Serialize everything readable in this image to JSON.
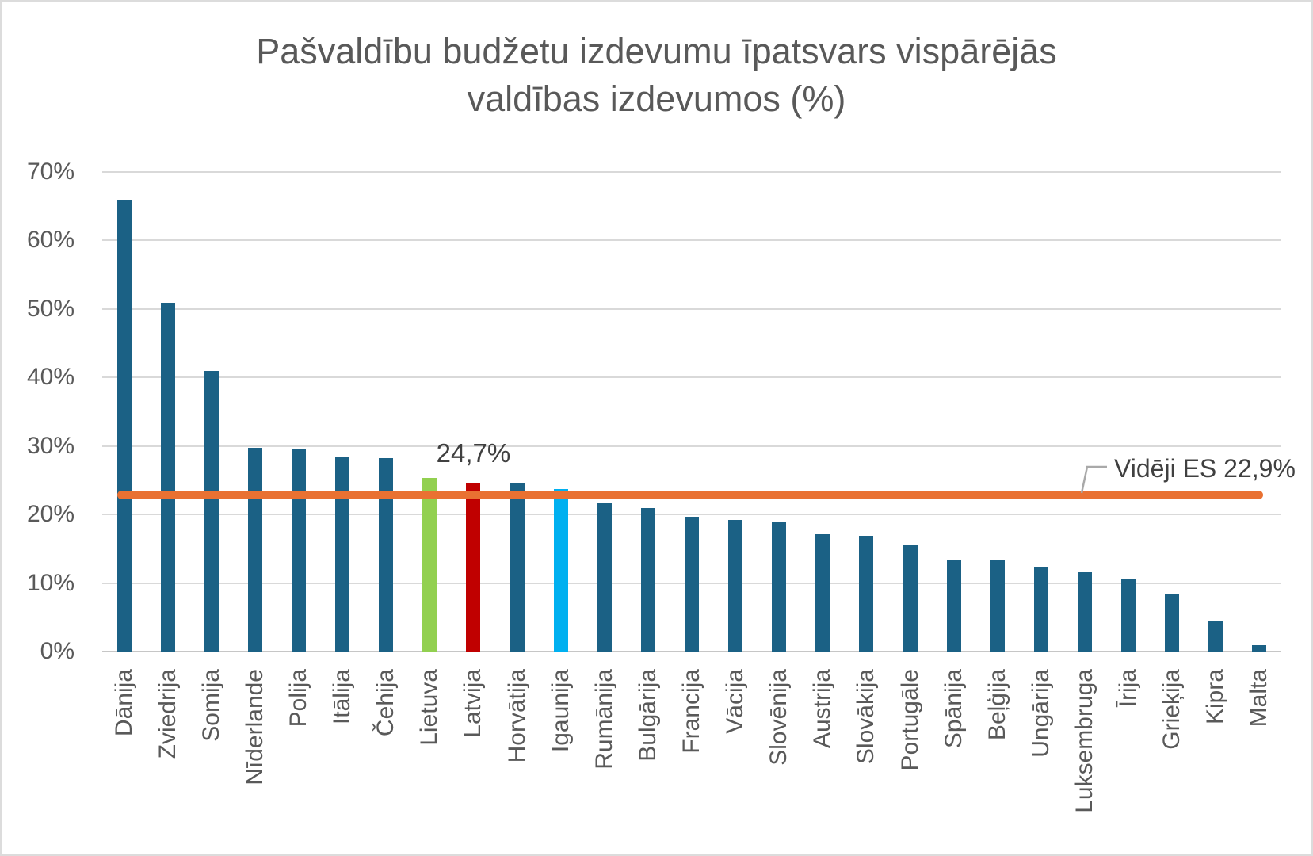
{
  "title": {
    "line1": "Pašvaldību budžetu izdevumu īpatsvars vispārējās",
    "line2": "valdības izdevumos (%)"
  },
  "chart_data": {
    "type": "bar",
    "title": "Pašvaldību budžetu izdevumu īpatsvars vispārējās valdības izdevumos (%)",
    "xlabel": "",
    "ylabel": "",
    "ylim": [
      0,
      70
    ],
    "grid": true,
    "legend": false,
    "categories": [
      "Dānija",
      "Zviedrija",
      "Somija",
      "Nīderlande",
      "Polija",
      "Itālija",
      "Čehija",
      "Lietuva",
      "Latvija",
      "Horvātija",
      "Igaunija",
      "Rumānija",
      "Bulgārija",
      "Francija",
      "Vācija",
      "Slovēnija",
      "Austrija",
      "Slovākija",
      "Portugāle",
      "Spānija",
      "Beļģija",
      "Ungārija",
      "Luksembruga",
      "Īrija",
      "Grieķija",
      "Kipra",
      "Malta"
    ],
    "values": [
      65.9,
      50.9,
      41.0,
      29.7,
      29.6,
      28.3,
      28.2,
      25.3,
      24.7,
      24.6,
      23.7,
      21.7,
      21.0,
      19.7,
      19.2,
      18.9,
      17.1,
      16.9,
      15.5,
      13.4,
      13.3,
      12.4,
      11.6,
      10.5,
      8.4,
      4.5,
      0.9
    ],
    "bar_colors": [
      "#1B6185",
      "#1B6185",
      "#1B6185",
      "#1B6185",
      "#1B6185",
      "#1B6185",
      "#1B6185",
      "#92D050",
      "#C00000",
      "#1B6185",
      "#00B0F0",
      "#1B6185",
      "#1B6185",
      "#1B6185",
      "#1B6185",
      "#1B6185",
      "#1B6185",
      "#1B6185",
      "#1B6185",
      "#1B6185",
      "#1B6185",
      "#1B6185",
      "#1B6185",
      "#1B6185",
      "#1B6185",
      "#1B6185",
      "#1B6185"
    ],
    "bar_color_default": "#1B6185",
    "y_ticks": {
      "values": [
        70,
        60,
        50,
        40,
        30,
        20,
        10,
        0
      ],
      "labels": [
        "70%",
        "60%",
        "50%",
        "40%",
        "30%",
        "20%",
        "10%",
        "0%"
      ]
    },
    "data_label": {
      "category": "Latvija",
      "text": "24,7%"
    },
    "ref_line": {
      "value": 22.9,
      "label": "Vidēji ES 22,9%",
      "color": "#E97132"
    }
  },
  "colors": {
    "bar_default": "#1B6185",
    "bar_lietuva": "#92D050",
    "bar_latvija": "#C00000",
    "bar_igaunija": "#00B0F0",
    "ref_line": "#E97132",
    "gridline": "#D9D9D9",
    "axis_line": "#C6C6C6",
    "tick_text": "#595959",
    "title_text": "#595959",
    "annotation_text": "#404040",
    "leader_line": "#A9A9A9",
    "frame_border": "#DCDCDC",
    "background": "#FFFFFF"
  }
}
